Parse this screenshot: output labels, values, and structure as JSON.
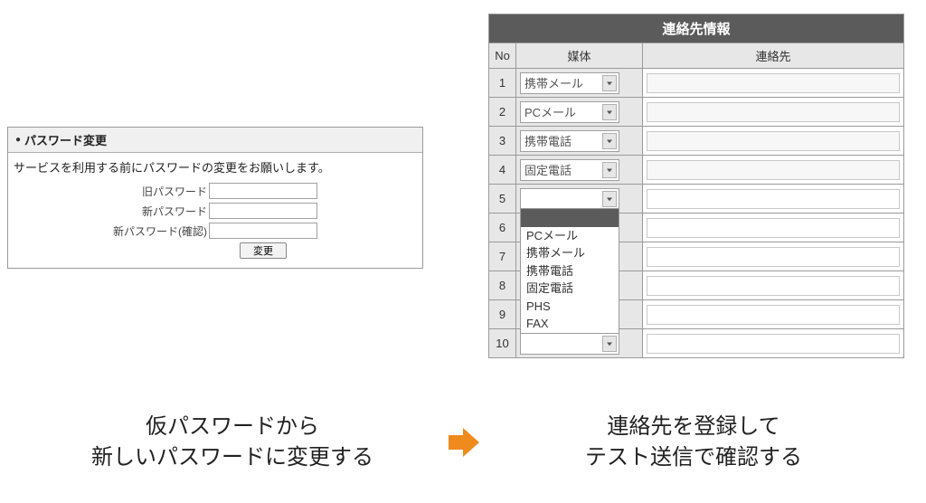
{
  "colors": {
    "panel_border": "#9a9a9a",
    "table_header_bg": "#5b5b5b",
    "table_header_fg": "#ffffff",
    "table_subhead_bg": "#e7e7e7",
    "cell_bg": "#e7e7e7",
    "dest_bg": "#ffffff",
    "arrow_fill": "#ef8a1d",
    "caption_color": "#222222"
  },
  "password_panel": {
    "title": "パスワード変更",
    "message": "サービスを利用する前にパスワードの変更をお願いします。",
    "labels": {
      "old": "旧パスワード",
      "new": "新パスワード",
      "confirm": "新パスワード(確認)"
    },
    "button": "変更"
  },
  "contact_panel": {
    "title": "連絡先情報",
    "columns": {
      "no": "No",
      "media": "媒体",
      "dest": "連絡先"
    },
    "dropdown_options": [
      "",
      "PCメール",
      "携帯メール",
      "携帯電話",
      "固定電話",
      "PHS",
      "FAX"
    ],
    "dropdown_open_row": 5,
    "dropdown_selected_index": 0,
    "rows": [
      {
        "no": "1",
        "media": "携帯メール",
        "dest": ""
      },
      {
        "no": "2",
        "media": "PCメール",
        "dest": ""
      },
      {
        "no": "3",
        "media": "携帯電話",
        "dest": ""
      },
      {
        "no": "4",
        "media": "固定電話",
        "dest": ""
      },
      {
        "no": "5",
        "media": "",
        "dest": ""
      },
      {
        "no": "6",
        "media": "",
        "dest": ""
      },
      {
        "no": "7",
        "media": "",
        "dest": ""
      },
      {
        "no": "8",
        "media": "",
        "dest": ""
      },
      {
        "no": "9",
        "media": "",
        "dest": ""
      },
      {
        "no": "10",
        "media": "",
        "dest": ""
      }
    ]
  },
  "captions": {
    "left_line1": "仮パスワードから",
    "left_line2": "新しいパスワードに変更する",
    "right_line1": "連絡先を登録して",
    "right_line2": "テスト送信で確認する"
  }
}
